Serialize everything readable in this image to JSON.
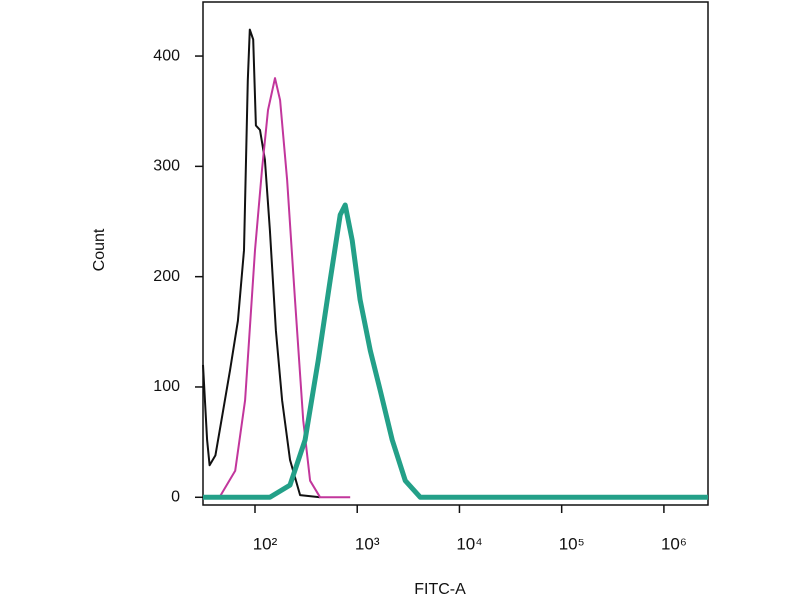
{
  "chart_data": {
    "type": "line",
    "xlabel": "FITC-A",
    "ylabel": "Count",
    "xscale": "log",
    "xlim": [
      31,
      2700000
    ],
    "xticks": [
      {
        "value": 100,
        "label": "10²"
      },
      {
        "value": 1000,
        "label": "10³"
      },
      {
        "value": 10000,
        "label": "10⁴"
      },
      {
        "value": 100000,
        "label": "10⁵"
      },
      {
        "value": 1000000,
        "label": "10⁶"
      }
    ],
    "ylim": [
      -7,
      449
    ],
    "yticks": [
      0,
      100,
      200,
      300,
      400
    ],
    "grid": false,
    "series": [
      {
        "color": "#111111",
        "linewidth": 2,
        "x": [
          31,
          34,
          36,
          41,
          47,
          57,
          68,
          78,
          85,
          89,
          96,
          102,
          112,
          125,
          140,
          160,
          184,
          220,
          276,
          433
        ],
        "values": [
          120,
          52,
          29,
          38,
          70,
          115,
          160,
          224,
          378,
          424,
          415,
          337,
          333,
          306,
          242,
          151,
          88,
          34,
          2,
          0
        ]
      },
      {
        "color": "#c2369c",
        "linewidth": 2,
        "x": [
          31,
          45,
          64,
          80,
          100,
          117,
          134,
          157,
          176,
          206,
          246,
          296,
          346,
          433,
          854
        ],
        "values": [
          0,
          0,
          24,
          88,
          224,
          297,
          351,
          380,
          360,
          288,
          179,
          70,
          15,
          0,
          0
        ]
      },
      {
        "color": "#23a088",
        "linewidth": 5,
        "x": [
          31,
          89,
          140,
          220,
          309,
          415,
          544,
          682,
          763,
          894,
          1068,
          1343,
          1679,
          2200,
          2950,
          4140,
          10200,
          2700000
        ],
        "values": [
          0,
          0,
          0,
          11,
          52,
          124,
          197,
          256,
          265,
          233,
          179,
          133,
          97,
          52,
          15,
          0,
          0,
          0
        ]
      }
    ]
  }
}
